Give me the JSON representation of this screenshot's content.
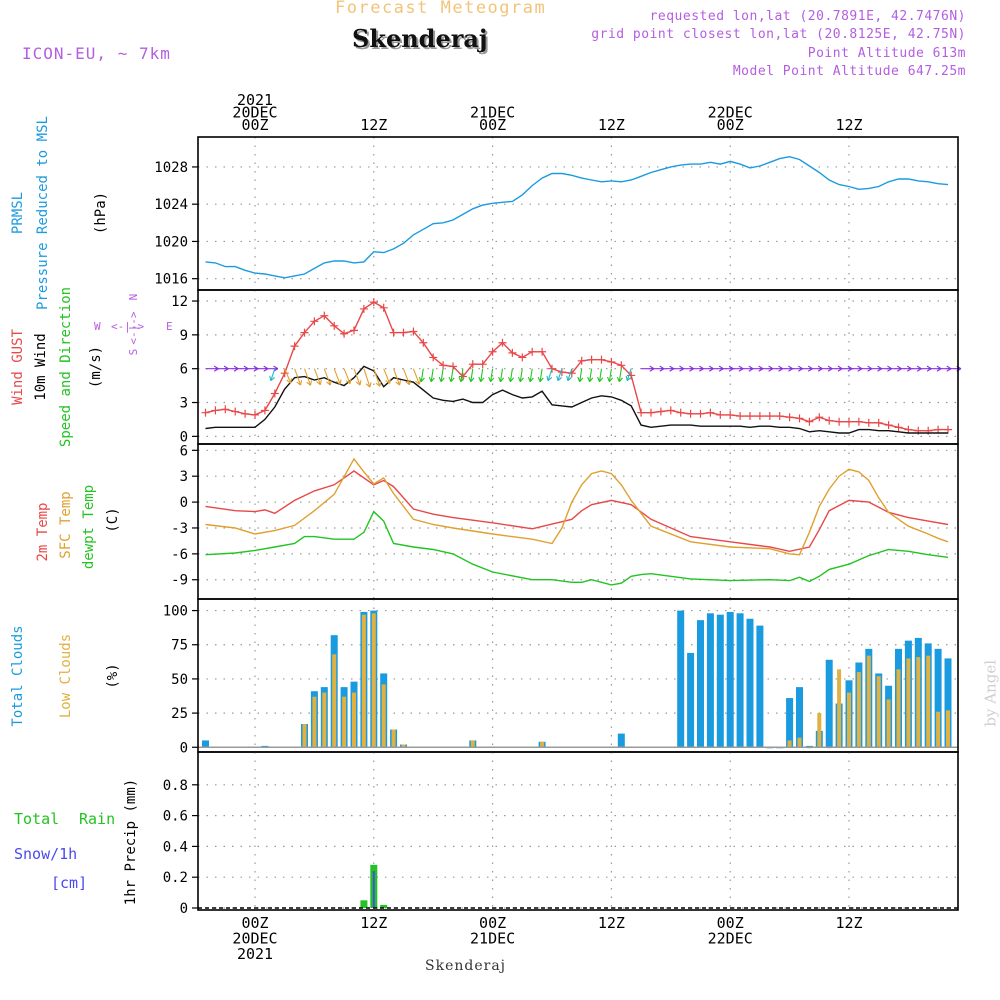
{
  "header": {
    "title": "Forecast Meteogram",
    "location": "Skenderaj",
    "model": "ICON-EU, ~ 7km",
    "requested": "requested lon,lat (20.7891E, 42.7476N)",
    "grid_point": "grid point closest lon,lat (20.8125E, 42.75N)",
    "point_altitude": "Point Altitude 613m",
    "model_altitude": "Model Point Altitude 647.25m"
  },
  "credit": "by Angel",
  "bottom_caption": "Skenderaj",
  "colors": {
    "pressure": "#1a9be0",
    "gust": "#e84848",
    "wind": "#111111",
    "temp2m": "#e84848",
    "sfc": "#e0a030",
    "dewpt": "#22c422",
    "total_cloud": "#1a9be0",
    "low_cloud": "#e0b040",
    "rain": "#22c422",
    "snow": "#4a4aee",
    "violet": "#b45ee0"
  },
  "time_axis": {
    "top": [
      {
        "x": 0,
        "lines": [
          "2021",
          "20DEC",
          "00Z"
        ]
      },
      {
        "x": 12,
        "lines": [
          "12Z"
        ]
      },
      {
        "x": 24,
        "lines": [
          "21DEC",
          "00Z"
        ]
      },
      {
        "x": 36,
        "lines": [
          "12Z"
        ]
      },
      {
        "x": 48,
        "lines": [
          "22DEC",
          "00Z"
        ]
      },
      {
        "x": 60,
        "lines": [
          "12Z"
        ]
      }
    ],
    "bottom": [
      {
        "x": 0,
        "lines": [
          "00Z",
          "20DEC",
          "2021"
        ]
      },
      {
        "x": 12,
        "lines": [
          "12Z"
        ]
      },
      {
        "x": 24,
        "lines": [
          "00Z",
          "21DEC"
        ]
      },
      {
        "x": 36,
        "lines": [
          "12Z"
        ]
      },
      {
        "x": 48,
        "lines": [
          "00Z",
          "22DEC"
        ]
      },
      {
        "x": 60,
        "lines": [
          "12Z"
        ]
      }
    ]
  },
  "panel_labels": {
    "pressure": [
      "PRMSL",
      "Pressure Reduced to MSL",
      "(hPa)"
    ],
    "wind": [
      "Wind GUST",
      "10m Wind",
      "Speed and Direction",
      "(m/s)"
    ],
    "compass": [
      "W",
      "<-|->",
      "E",
      "N",
      "S"
    ],
    "temp": [
      "2m Temp",
      "SFC Temp",
      "dewpt Temp",
      "(C)"
    ],
    "cloud": [
      "Total Clouds",
      "Low Clouds",
      "(%)"
    ],
    "precip": [
      "Total",
      "Rain",
      "Snow/1h",
      "[cm]",
      "1hr Precip (mm)"
    ]
  },
  "chart_data": [
    {
      "type": "line",
      "title": "PRMSL Pressure Reduced to MSL",
      "ylabel": "(hPa)",
      "x_units": "hours from 2021-12-20 00Z",
      "ylim": [
        1015,
        1031
      ],
      "yticks": [
        1016,
        1020,
        1024,
        1028
      ],
      "series": [
        {
          "name": "PRMSL",
          "x": [
            -5,
            -4,
            -3,
            -2,
            -1,
            0,
            1,
            2,
            3,
            4,
            5,
            6,
            7,
            8,
            9,
            10,
            11,
            12,
            13,
            14,
            15,
            16,
            17,
            18,
            19,
            20,
            21,
            22,
            23,
            24,
            25,
            26,
            27,
            28,
            29,
            30,
            31,
            32,
            33,
            34,
            35,
            36,
            37,
            38,
            39,
            40,
            41,
            42,
            43,
            44,
            45,
            46,
            47,
            48,
            49,
            50,
            51,
            52,
            53,
            54,
            55,
            56,
            57,
            58,
            59,
            60,
            61,
            62,
            63,
            64,
            65,
            66,
            67,
            68,
            69,
            70
          ],
          "y": [
            1017.8,
            1017.7,
            1017.3,
            1017.3,
            1016.9,
            1016.6,
            1016.5,
            1016.3,
            1016.1,
            1016.3,
            1016.5,
            1017.1,
            1017.7,
            1017.9,
            1017.9,
            1017.7,
            1017.8,
            1018.9,
            1018.8,
            1019.2,
            1019.8,
            1020.7,
            1021.3,
            1021.9,
            1022.0,
            1022.3,
            1022.9,
            1023.5,
            1023.9,
            1024.1,
            1024.2,
            1024.3,
            1025.0,
            1026.0,
            1026.8,
            1027.3,
            1027.3,
            1027.1,
            1026.8,
            1026.6,
            1026.4,
            1026.5,
            1026.4,
            1026.6,
            1027.0,
            1027.4,
            1027.7,
            1028.0,
            1028.2,
            1028.3,
            1028.3,
            1028.5,
            1028.3,
            1028.6,
            1028.3,
            1027.9,
            1028.1,
            1028.5,
            1028.9,
            1029.1,
            1028.8,
            1028.1,
            1027.4,
            1026.6,
            1026.1,
            1025.9,
            1025.6,
            1025.7,
            1025.9,
            1026.4,
            1026.7,
            1026.7,
            1026.5,
            1026.4,
            1026.2,
            1026.1
          ]
        }
      ]
    },
    {
      "type": "line",
      "title": "Wind GUST / 10m Wind Speed and Direction",
      "ylabel": "(m/s)",
      "x_units": "hours from 2021-12-20 00Z",
      "ylim": [
        -0.5,
        12.8
      ],
      "yticks": [
        0,
        3,
        6,
        9,
        12
      ],
      "series": [
        {
          "name": "Wind GUST",
          "marker": "+",
          "x": [
            -5,
            -4,
            -3,
            -2,
            -1,
            0,
            1,
            2,
            3,
            4,
            5,
            6,
            7,
            8,
            9,
            10,
            11,
            12,
            13,
            14,
            15,
            16,
            17,
            18,
            19,
            20,
            21,
            22,
            23,
            24,
            25,
            26,
            27,
            28,
            29,
            30,
            31,
            32,
            33,
            34,
            35,
            36,
            37,
            38,
            39,
            40,
            41,
            42,
            43,
            44,
            45,
            46,
            47,
            48,
            49,
            50,
            51,
            52,
            53,
            54,
            55,
            56,
            57,
            58,
            59,
            60,
            61,
            62,
            63,
            64,
            65,
            66,
            67,
            68,
            69,
            70
          ],
          "y": [
            2.1,
            2.3,
            2.4,
            2.2,
            2.0,
            1.9,
            2.3,
            3.8,
            5.6,
            8.0,
            9.2,
            10.2,
            10.7,
            9.8,
            9.1,
            9.4,
            11.3,
            11.9,
            11.4,
            9.2,
            9.2,
            9.3,
            8.3,
            7.0,
            6.3,
            6.2,
            5.3,
            6.4,
            6.4,
            7.5,
            8.3,
            7.4,
            7.0,
            7.5,
            7.5,
            6.0,
            5.7,
            5.6,
            6.7,
            6.8,
            6.8,
            6.6,
            6.3,
            5.4,
            2.1,
            2.1,
            2.2,
            2.3,
            2.1,
            2.0,
            2.0,
            2.1,
            1.9,
            1.9,
            1.8,
            1.8,
            1.8,
            1.8,
            1.8,
            1.7,
            1.6,
            1.3,
            1.7,
            1.4,
            1.3,
            1.3,
            1.3,
            1.2,
            1.2,
            1.0,
            0.8,
            0.6,
            0.5,
            0.5,
            0.6,
            0.6
          ]
        },
        {
          "name": "10m Wind",
          "x": [
            -5,
            -4,
            -3,
            -2,
            -1,
            0,
            1,
            2,
            3,
            4,
            5,
            6,
            7,
            8,
            9,
            10,
            11,
            12,
            13,
            14,
            15,
            16,
            17,
            18,
            19,
            20,
            21,
            22,
            23,
            24,
            25,
            26,
            27,
            28,
            29,
            30,
            31,
            32,
            33,
            34,
            35,
            36,
            37,
            38,
            39,
            40,
            41,
            42,
            43,
            44,
            45,
            46,
            47,
            48,
            49,
            50,
            51,
            52,
            53,
            54,
            55,
            56,
            57,
            58,
            59,
            60,
            61,
            62,
            63,
            64,
            65,
            66,
            67,
            68,
            69,
            70
          ],
          "y": [
            0.7,
            0.8,
            0.8,
            0.8,
            0.8,
            0.8,
            1.5,
            2.6,
            4.2,
            5.2,
            5.3,
            5.0,
            5.2,
            4.8,
            4.5,
            5.2,
            6.2,
            5.8,
            4.4,
            5.2,
            5.0,
            4.8,
            4.1,
            3.4,
            3.2,
            3.1,
            3.3,
            3.0,
            3.0,
            3.7,
            4.1,
            3.7,
            3.4,
            3.5,
            4.0,
            2.8,
            2.7,
            2.6,
            3.0,
            3.4,
            3.6,
            3.5,
            3.2,
            2.7,
            1.0,
            0.8,
            0.9,
            1.0,
            1.0,
            1.0,
            0.9,
            0.9,
            0.9,
            0.9,
            0.9,
            0.8,
            0.9,
            0.9,
            0.8,
            0.8,
            0.7,
            0.4,
            0.5,
            0.4,
            0.3,
            0.3,
            0.6,
            0.6,
            0.5,
            0.5,
            0.4,
            0.3,
            0.3,
            0.3,
            0.3,
            0.3
          ]
        },
        {
          "name": "wind direction arrows",
          "y_level": 6,
          "note": "arrows drawn at each forecast hour: westerly (violet) calm periods, northerly/north-easterly (orange, teal, green) during stronger wind"
        }
      ]
    },
    {
      "type": "line",
      "title": "2m Temp / SFC Temp / dewpt Temp",
      "ylabel": "(C)",
      "x_units": "hours from 2021-12-20 00Z",
      "ylim": [
        -11,
        6.5
      ],
      "yticks": [
        -9,
        -6,
        -3,
        0,
        3,
        6
      ],
      "series": [
        {
          "name": "2m Temp",
          "x": [
            -5,
            -2,
            0,
            1,
            2,
            4,
            6,
            8,
            10,
            12,
            13,
            14,
            16,
            18,
            20,
            24,
            28,
            32,
            33,
            34,
            36,
            38,
            40,
            44,
            48,
            52,
            54,
            56,
            57,
            58,
            60,
            62,
            64,
            66,
            68,
            70
          ],
          "y": [
            -0.5,
            -1.0,
            -1.1,
            -0.9,
            -1.3,
            0.2,
            1.3,
            2.0,
            3.6,
            2.0,
            2.5,
            1.8,
            -0.8,
            -1.4,
            -1.8,
            -2.4,
            -3.1,
            -2.0,
            -1.0,
            -0.3,
            0.2,
            -0.3,
            -2.0,
            -4.0,
            -4.6,
            -5.2,
            -5.7,
            -5.2,
            -3.2,
            -1.0,
            0.2,
            0.0,
            -1.2,
            -1.8,
            -2.2,
            -2.6
          ]
        },
        {
          "name": "SFC Temp",
          "x": [
            -5,
            -2,
            0,
            2,
            4,
            6,
            8,
            10,
            11,
            12,
            13,
            14,
            16,
            18,
            20,
            24,
            28,
            30,
            31,
            32,
            33,
            34,
            35,
            36,
            37,
            38,
            40,
            44,
            48,
            52,
            54,
            55,
            56,
            57,
            58,
            59,
            60,
            61,
            62,
            63,
            64,
            66,
            68,
            69,
            70
          ],
          "y": [
            -2.6,
            -3.0,
            -3.7,
            -3.3,
            -2.7,
            -1.0,
            0.9,
            5.0,
            3.5,
            2.1,
            2.8,
            1.0,
            -2.0,
            -2.6,
            -3.0,
            -3.7,
            -4.3,
            -4.8,
            -3.0,
            0.0,
            2.0,
            3.3,
            3.6,
            3.3,
            2.0,
            0.2,
            -2.8,
            -4.6,
            -5.2,
            -5.4,
            -6.0,
            -6.1,
            -3.5,
            -0.5,
            1.5,
            3.0,
            3.8,
            3.5,
            2.5,
            0.5,
            -1.2,
            -2.8,
            -3.7,
            -4.2,
            -4.6
          ]
        },
        {
          "name": "dewpt Temp",
          "x": [
            -5,
            -2,
            0,
            2,
            4,
            5,
            6,
            8,
            10,
            11,
            12,
            13,
            14,
            16,
            18,
            20,
            22,
            24,
            28,
            30,
            32,
            33,
            34,
            36,
            37,
            38,
            39,
            40,
            44,
            48,
            52,
            54,
            55,
            56,
            57,
            58,
            60,
            62,
            64,
            66,
            68,
            70
          ],
          "y": [
            -6.1,
            -5.9,
            -5.6,
            -5.2,
            -4.8,
            -4.0,
            -4.0,
            -4.3,
            -4.3,
            -3.5,
            -1.1,
            -2.2,
            -4.8,
            -5.2,
            -5.5,
            -6.0,
            -7.2,
            -8.1,
            -9.0,
            -9.0,
            -9.3,
            -9.3,
            -9.0,
            -9.6,
            -9.4,
            -8.6,
            -8.4,
            -8.3,
            -8.9,
            -9.1,
            -9.0,
            -9.1,
            -8.7,
            -9.2,
            -8.6,
            -7.8,
            -7.2,
            -6.2,
            -5.5,
            -5.7,
            -6.1,
            -6.4
          ]
        }
      ]
    },
    {
      "type": "bar",
      "title": "Total Clouds / Low Clouds",
      "ylabel": "(%)",
      "x_units": "hours from 2021-12-20 00Z",
      "ylim": [
        -2,
        107
      ],
      "yticks": [
        0,
        25,
        50,
        75,
        100
      ],
      "series": [
        {
          "name": "Total Clouds",
          "x": [
            -5,
            1,
            5,
            6,
            7,
            8,
            9,
            10,
            11,
            12,
            13,
            14,
            15,
            22,
            29,
            37,
            43,
            44,
            45,
            46,
            47,
            48,
            49,
            50,
            51,
            52,
            53,
            54,
            55,
            56,
            57,
            58,
            59,
            60,
            61,
            62,
            63,
            64,
            65,
            66,
            67,
            68,
            69,
            70
          ],
          "y": [
            5,
            1,
            17,
            41,
            44,
            82,
            44,
            48,
            99,
            100,
            54,
            13,
            2,
            5,
            4,
            10,
            100,
            69,
            93,
            98,
            97,
            99,
            98,
            94,
            89,
            0,
            0,
            36,
            44,
            1,
            12,
            64,
            32,
            49,
            62,
            72,
            54,
            45,
            72,
            78,
            80,
            76,
            72,
            65
          ]
        },
        {
          "name": "Low Clouds",
          "x": [
            5,
            6,
            7,
            8,
            9,
            10,
            11,
            12,
            13,
            14,
            15,
            22,
            29,
            54,
            55,
            56,
            57,
            58,
            59,
            60,
            61,
            62,
            63,
            64,
            65,
            66,
            67,
            68,
            69,
            70
          ],
          "y": [
            17,
            37,
            40,
            68,
            37,
            40,
            97,
            98,
            46,
            13,
            2,
            5,
            4,
            5,
            7,
            0,
            25,
            0,
            57,
            40,
            55,
            67,
            52,
            35,
            57,
            65,
            66,
            67,
            26,
            27
          ]
        }
      ]
    },
    {
      "type": "bar",
      "title": "Total Rain Snow/1h",
      "ylabel": "1hr Precip (mm)",
      "x_units": "hours from 2021-12-20 00Z",
      "ylim": [
        0,
        1.0
      ],
      "yticks": [
        0,
        0.2,
        0.4,
        0.6,
        0.8
      ],
      "series": [
        {
          "name": "Total Rain",
          "x": [
            11,
            12,
            13
          ],
          "y": [
            0.05,
            0.28,
            0.02
          ]
        },
        {
          "name": "Snow/1h",
          "x": [
            12
          ],
          "y": [
            0.24
          ]
        }
      ]
    }
  ]
}
